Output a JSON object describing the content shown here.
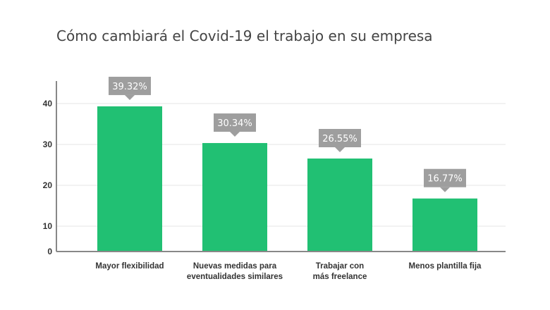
{
  "chart_data": {
    "type": "bar",
    "title": "Cómo cambiará el Covid-19 el trabajo en su empresa",
    "xlabel": "",
    "ylabel": "",
    "categories": [
      [
        "Mayor flexibilidad"
      ],
      [
        "Nuevas medidas para",
        "eventualidades similares"
      ],
      [
        "Trabajar con",
        "más freelance"
      ],
      [
        "Menos plantilla fija"
      ]
    ],
    "values": [
      39.32,
      30.34,
      26.55,
      16.77
    ],
    "data_labels": [
      "39.32%",
      "30.34%",
      "26.55%",
      "16.77%"
    ],
    "yticks": [
      0,
      10,
      20,
      30,
      40
    ],
    "ylim": [
      0,
      45
    ],
    "grid": true,
    "colors": {
      "bar": "#21c073",
      "label_box": "#9e9e9e",
      "grid": "#e6e6e6",
      "axis": "#888888"
    }
  }
}
